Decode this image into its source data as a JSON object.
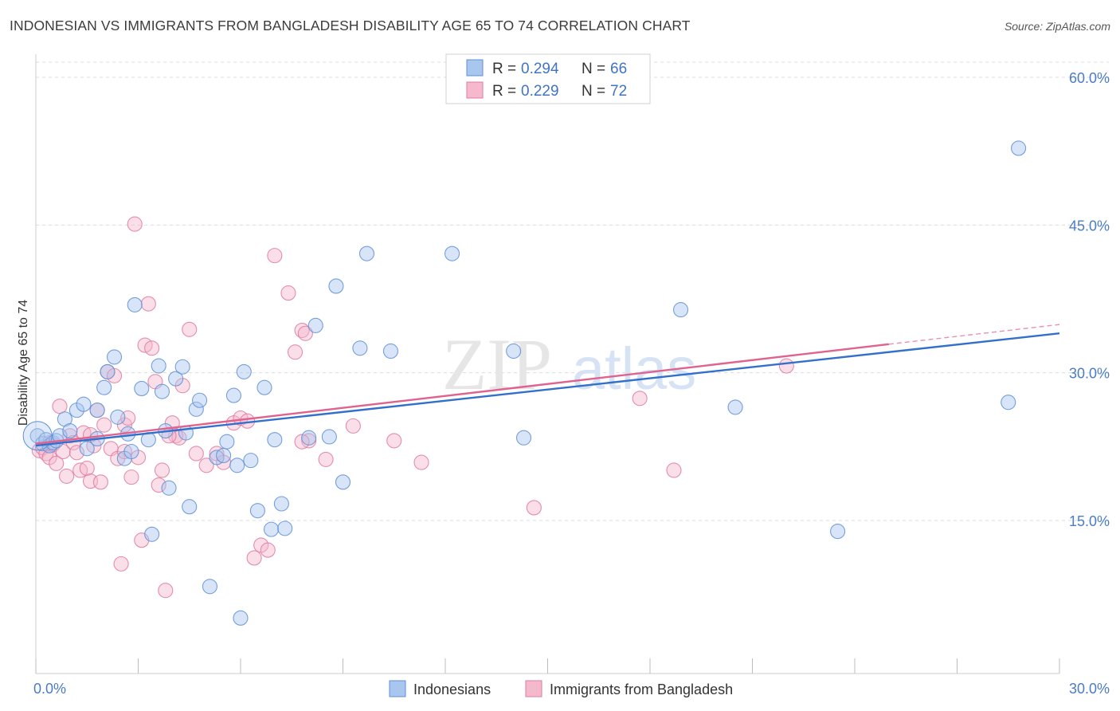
{
  "title": "INDONESIAN VS IMMIGRANTS FROM BANGLADESH DISABILITY AGE 65 TO 74 CORRELATION CHART",
  "source": "Source: ZipAtlas.com",
  "watermark": {
    "zip": "ZIP",
    "atlas": "atlas"
  },
  "colors": {
    "blue_fill": "#a9c6ef",
    "blue_stroke": "#5f8fd6",
    "blue_line": "#3370cc",
    "pink_fill": "#f5b8cc",
    "pink_stroke": "#e07aa0",
    "pink_line": "#e0628f",
    "grid": "#dcdcdc",
    "tick_label": "#4a7cc8"
  },
  "legend": {
    "rows": [
      {
        "r_label": "R = ",
        "r_value": "0.294",
        "n_label": "N = ",
        "n_value": "66",
        "series": "blue"
      },
      {
        "r_label": "R = ",
        "r_value": "0.229",
        "n_label": "N = ",
        "n_value": "72",
        "series": "pink"
      }
    ]
  },
  "bottom_legend": [
    "Indonesians",
    "Immigrants from Bangladesh"
  ],
  "chart_data": {
    "type": "scatter",
    "ylabel": "Disability Age 65 to 74",
    "xlim": [
      0,
      30
    ],
    "ylim": [
      0,
      60
    ],
    "y_ticks": [
      {
        "value": 15,
        "label": "15.0%"
      },
      {
        "value": 30,
        "label": "30.0%"
      },
      {
        "value": 45,
        "label": "45.0%"
      },
      {
        "value": 60,
        "label": "60.0%"
      }
    ],
    "x_ticks": [
      {
        "value": 0,
        "label": "0.0%"
      },
      {
        "value": 30,
        "label": "30.0%"
      }
    ],
    "grid": true,
    "legend_position": "top-center",
    "series": [
      {
        "name": "Indonesians",
        "color": "blue",
        "trend": {
          "x": [
            0,
            30
          ],
          "y": [
            22.6,
            34.0
          ]
        },
        "points": [
          [
            0.05,
            23.6
          ],
          [
            0.2,
            22.8
          ],
          [
            0.3,
            23.2
          ],
          [
            0.4,
            22.6
          ],
          [
            0.5,
            22.9
          ],
          [
            0.6,
            23.1
          ],
          [
            0.7,
            23.6
          ],
          [
            0.85,
            25.3
          ],
          [
            1.0,
            24.1
          ],
          [
            1.2,
            26.2
          ],
          [
            1.4,
            26.8
          ],
          [
            1.5,
            22.3
          ],
          [
            1.8,
            23.3
          ],
          [
            1.8,
            26.2
          ],
          [
            2.0,
            28.5
          ],
          [
            2.1,
            30.1
          ],
          [
            2.3,
            31.6
          ],
          [
            2.4,
            25.5
          ],
          [
            2.6,
            21.3
          ],
          [
            2.7,
            23.8
          ],
          [
            2.8,
            22.0
          ],
          [
            2.9,
            36.9
          ],
          [
            3.1,
            28.4
          ],
          [
            3.3,
            23.2
          ],
          [
            3.4,
            13.6
          ],
          [
            3.6,
            30.7
          ],
          [
            3.7,
            28.1
          ],
          [
            3.8,
            24.1
          ],
          [
            3.9,
            18.3
          ],
          [
            4.1,
            29.4
          ],
          [
            4.3,
            30.6
          ],
          [
            4.4,
            23.9
          ],
          [
            4.5,
            16.4
          ],
          [
            4.7,
            26.3
          ],
          [
            4.8,
            27.2
          ],
          [
            5.1,
            8.3
          ],
          [
            5.3,
            21.4
          ],
          [
            5.5,
            21.6
          ],
          [
            5.6,
            23.0
          ],
          [
            5.8,
            27.7
          ],
          [
            5.9,
            20.6
          ],
          [
            6.0,
            5.1
          ],
          [
            6.1,
            30.1
          ],
          [
            6.3,
            21.1
          ],
          [
            6.5,
            16.0
          ],
          [
            6.7,
            28.5
          ],
          [
            6.9,
            14.1
          ],
          [
            7.0,
            23.2
          ],
          [
            7.2,
            16.7
          ],
          [
            7.3,
            14.2
          ],
          [
            8.0,
            23.4
          ],
          [
            8.2,
            34.8
          ],
          [
            8.6,
            23.5
          ],
          [
            8.8,
            38.8
          ],
          [
            9.0,
            18.9
          ],
          [
            9.5,
            32.5
          ],
          [
            9.7,
            42.1
          ],
          [
            10.4,
            32.2
          ],
          [
            12.2,
            42.1
          ],
          [
            14.0,
            32.2
          ],
          [
            14.3,
            23.4
          ],
          [
            18.9,
            36.4
          ],
          [
            20.5,
            26.5
          ],
          [
            23.5,
            13.9
          ],
          [
            28.5,
            27.0
          ],
          [
            28.8,
            52.8
          ]
        ]
      },
      {
        "name": "Immigrants from Bangladesh",
        "color": "pink",
        "trend": {
          "x": [
            0,
            25
          ],
          "y": [
            22.8,
            32.9
          ]
        },
        "trend_dashed": {
          "x": [
            25,
            30
          ],
          "y": [
            32.9,
            34.9
          ]
        },
        "points": [
          [
            0.1,
            22.1
          ],
          [
            0.2,
            22.4
          ],
          [
            0.3,
            21.8
          ],
          [
            0.4,
            21.4
          ],
          [
            0.5,
            22.7
          ],
          [
            0.6,
            20.8
          ],
          [
            0.7,
            26.6
          ],
          [
            0.8,
            22.0
          ],
          [
            0.9,
            19.5
          ],
          [
            1.0,
            23.6
          ],
          [
            1.1,
            22.9
          ],
          [
            1.2,
            21.9
          ],
          [
            1.3,
            20.1
          ],
          [
            1.4,
            23.9
          ],
          [
            1.5,
            20.3
          ],
          [
            1.6,
            19.0
          ],
          [
            1.7,
            22.6
          ],
          [
            1.8,
            26.2
          ],
          [
            1.9,
            18.9
          ],
          [
            2.0,
            24.7
          ],
          [
            2.1,
            30.1
          ],
          [
            2.2,
            22.3
          ],
          [
            2.3,
            29.7
          ],
          [
            2.4,
            21.3
          ],
          [
            2.5,
            10.6
          ],
          [
            2.6,
            24.7
          ],
          [
            2.7,
            25.4
          ],
          [
            2.8,
            19.4
          ],
          [
            2.9,
            45.1
          ],
          [
            3.0,
            21.4
          ],
          [
            3.1,
            13.0
          ],
          [
            3.2,
            32.8
          ],
          [
            3.3,
            37.0
          ],
          [
            3.4,
            32.5
          ],
          [
            3.5,
            29.1
          ],
          [
            3.6,
            18.6
          ],
          [
            3.7,
            20.1
          ],
          [
            3.8,
            7.9
          ],
          [
            4.0,
            24.9
          ],
          [
            4.1,
            23.6
          ],
          [
            4.3,
            28.7
          ],
          [
            4.5,
            34.4
          ],
          [
            4.7,
            21.8
          ],
          [
            5.0,
            20.6
          ],
          [
            5.3,
            21.8
          ],
          [
            5.5,
            20.9
          ],
          [
            5.8,
            24.9
          ],
          [
            6.0,
            25.4
          ],
          [
            6.2,
            25.1
          ],
          [
            6.4,
            11.2
          ],
          [
            6.6,
            12.5
          ],
          [
            6.8,
            12.0
          ],
          [
            7.0,
            41.9
          ],
          [
            7.4,
            38.1
          ],
          [
            7.6,
            32.1
          ],
          [
            7.8,
            34.3
          ],
          [
            7.9,
            34.0
          ],
          [
            8.0,
            23.1
          ],
          [
            8.5,
            21.2
          ],
          [
            9.3,
            24.6
          ],
          [
            10.5,
            23.1
          ],
          [
            11.3,
            20.9
          ],
          [
            14.6,
            16.3
          ],
          [
            17.7,
            27.4
          ],
          [
            18.7,
            20.1
          ],
          [
            22.0,
            30.7
          ],
          [
            7.8,
            23.0
          ],
          [
            1.6,
            23.7
          ],
          [
            0.4,
            22.9
          ],
          [
            2.6,
            22.0
          ],
          [
            4.2,
            23.4
          ],
          [
            3.9,
            23.6
          ]
        ]
      }
    ]
  }
}
